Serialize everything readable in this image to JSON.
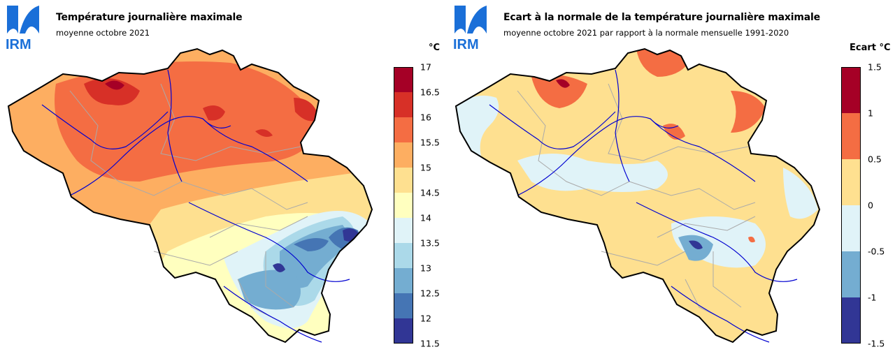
{
  "left_panel": {
    "logo_text": "IRM",
    "title": "Température journalière maximale",
    "subtitle": "moyenne octobre 2021",
    "unit": "°C",
    "legend": {
      "ticks": [
        "17",
        "16.5",
        "16",
        "15.5",
        "15",
        "14.5",
        "14",
        "13.5",
        "13",
        "12.5",
        "12",
        "11.5"
      ],
      "colors": [
        "#a50026",
        "#d73027",
        "#f46d43",
        "#fdae61",
        "#fee090",
        "#ffffbf",
        "#e0f3f8",
        "#abd9e9",
        "#74add1",
        "#4575b4",
        "#313695"
      ]
    }
  },
  "right_panel": {
    "logo_text": "IRM",
    "title": "Ecart à la normale de la température journalière maximale",
    "subtitle": "moyenne octobre 2021 par rapport à la normale mensuelle 1991-2020",
    "unit": "Ecart  °C",
    "legend": {
      "ticks": [
        "1.5",
        "1",
        "0.5",
        "0",
        "-0.5",
        "-1",
        "-1.5"
      ],
      "colors": [
        "#a50026",
        "#f46d43",
        "#fee090",
        "#e0f3f8",
        "#74add1",
        "#313695"
      ]
    }
  }
}
